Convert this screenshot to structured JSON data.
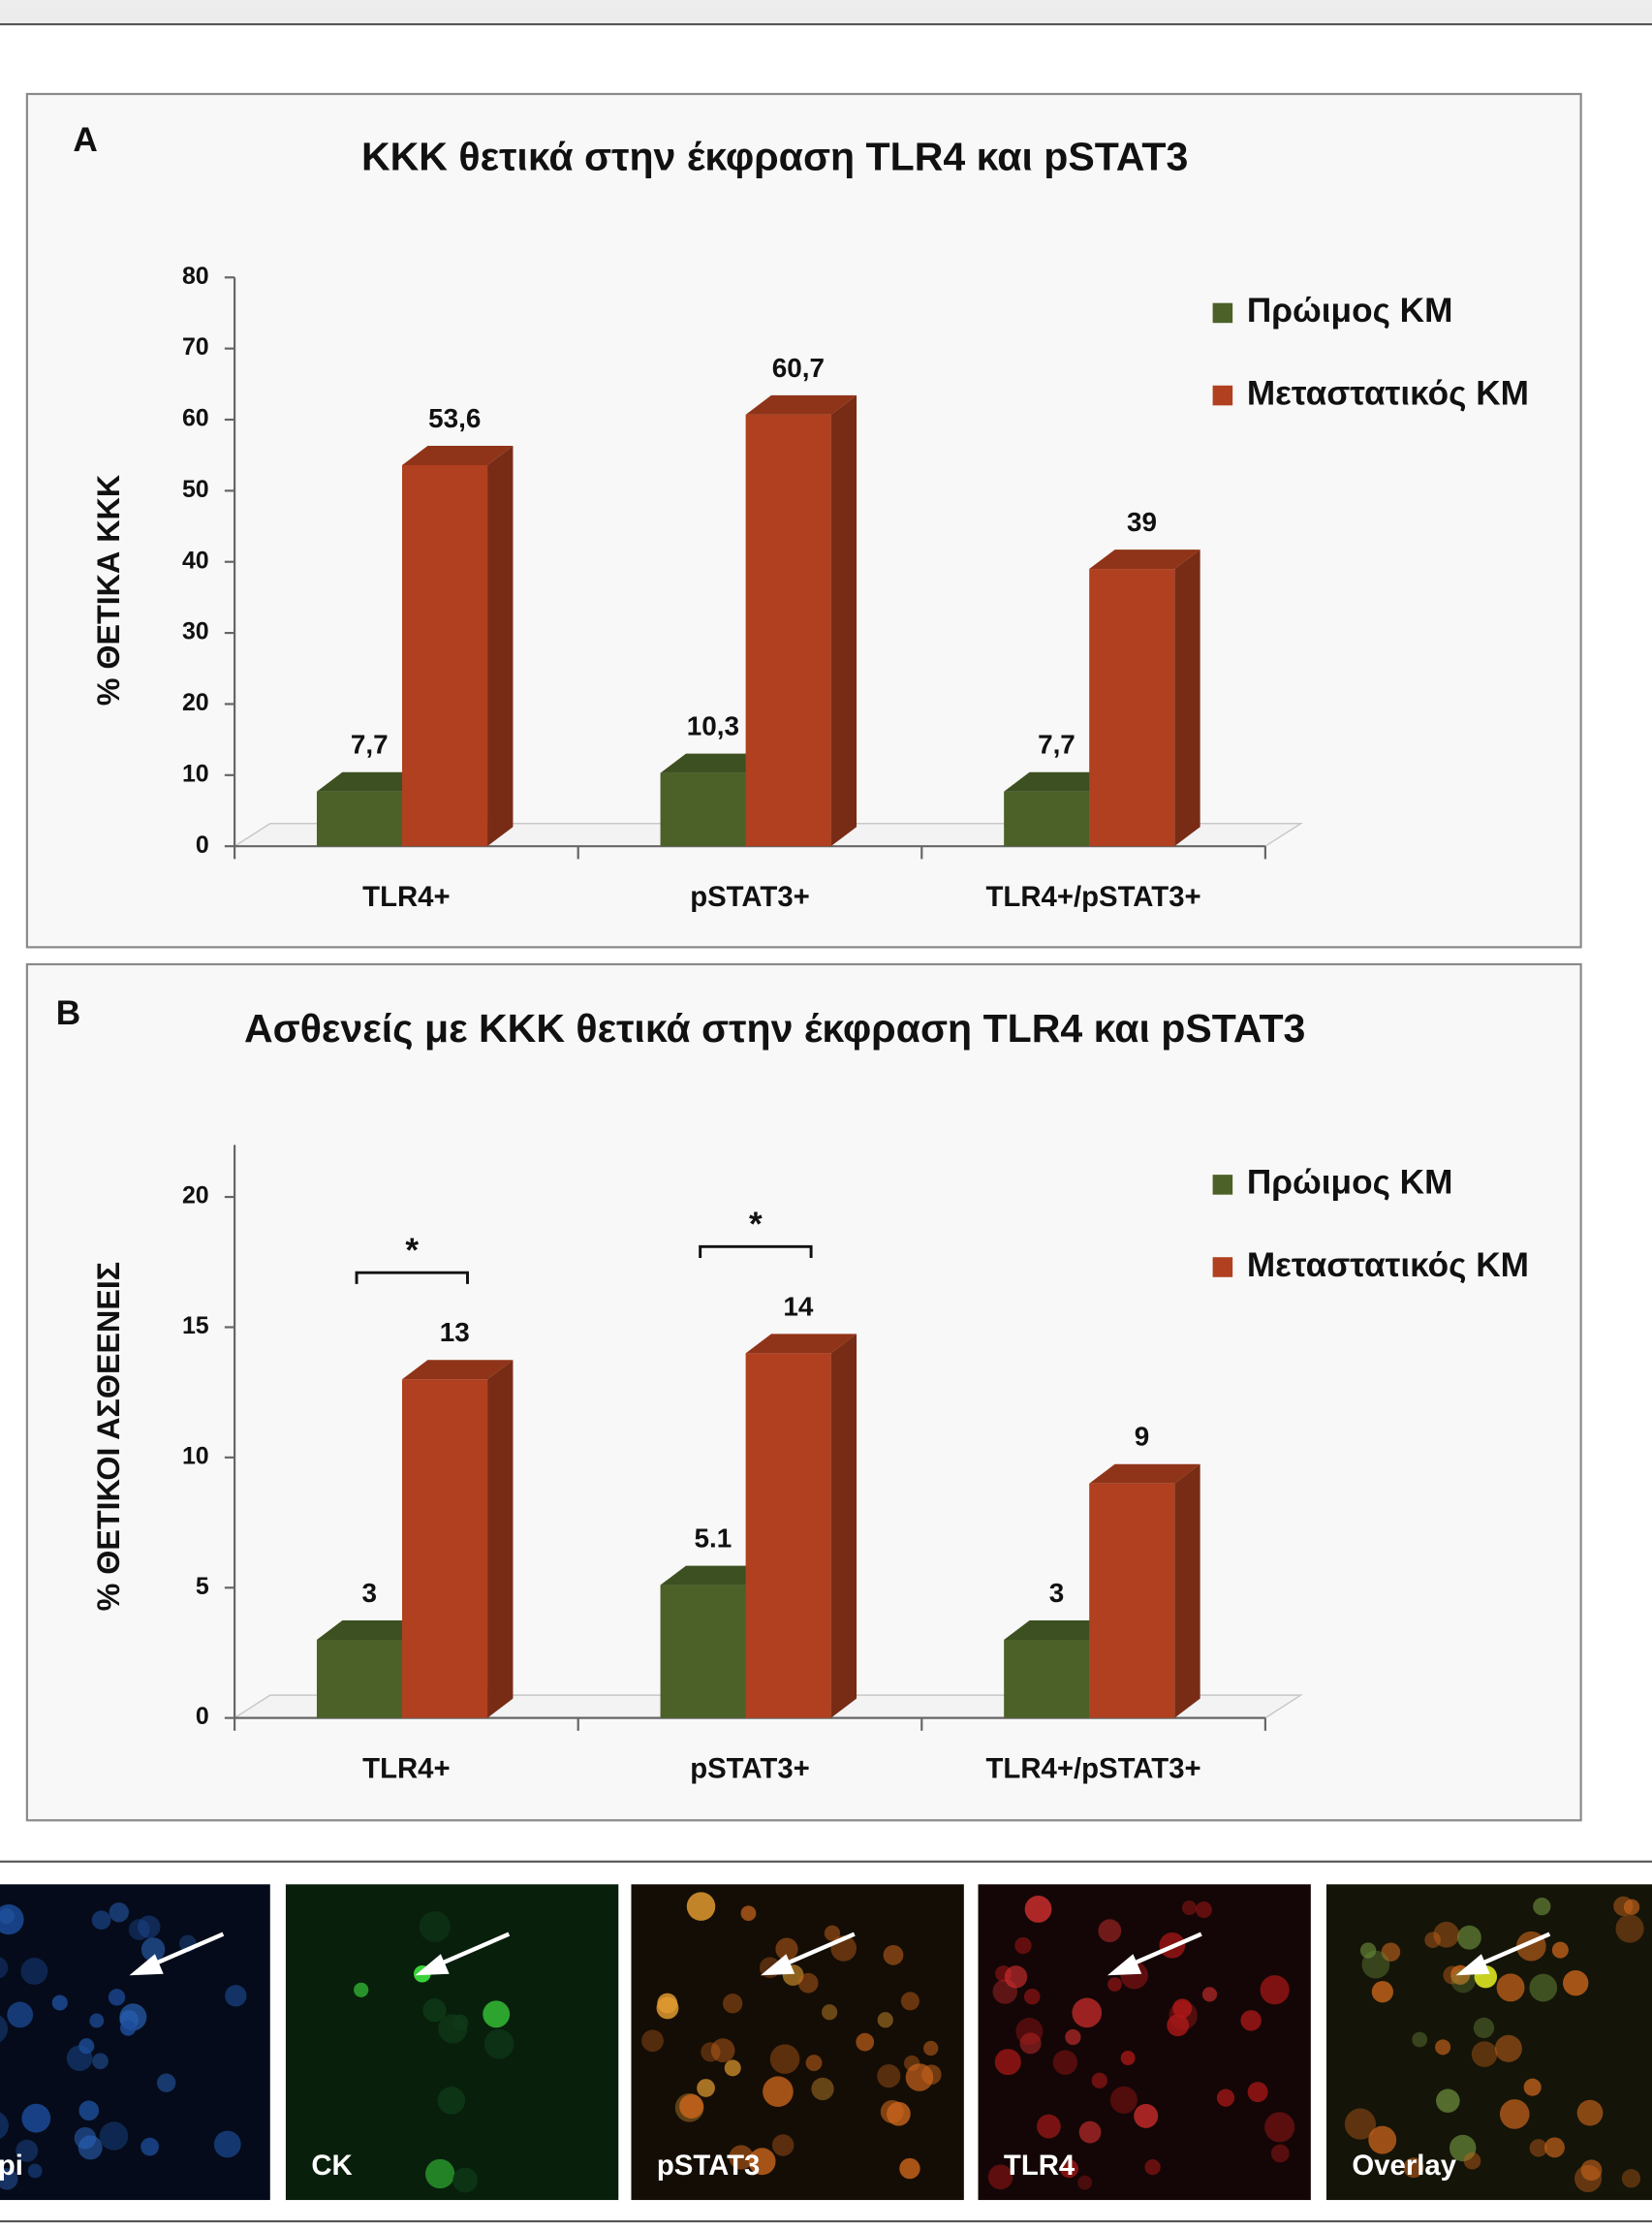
{
  "chart_data": [
    {
      "type": "bar3d",
      "label": "A",
      "title": "ΚΚΚ θετικά στην έκφραση TLR4 και pSTAT3",
      "y_label": "% ΘΕΤΙΚΑ ΚΚΚ",
      "categories": [
        "TLR4+",
        "pSTAT3+",
        "TLR4+/pSTAT3+"
      ],
      "series": [
        {
          "name": "Πρώιμος ΚΜ",
          "color": "#4b6128",
          "values": [
            7.7,
            10.3,
            7.7
          ],
          "value_labels": [
            "7,7",
            "10,3",
            "7,7"
          ]
        },
        {
          "name": "Μεταστατικός ΚΜ",
          "color": "#b0401f",
          "values": [
            53.6,
            60.7,
            39
          ],
          "value_labels": [
            "53,6",
            "60,7",
            "39"
          ]
        }
      ],
      "ylim": [
        0,
        80
      ],
      "yticks": [
        0,
        10,
        20,
        30,
        40,
        50,
        60,
        70,
        80
      ],
      "legend": "upper right"
    },
    {
      "type": "bar3d",
      "label": "B",
      "title": "Ασθενείς με ΚΚΚ θετικά στην έκφραση TLR4 και pSTAT3",
      "y_label": "% ΘΕΤΙΚΟΙ ΑΣΘΕΕΝΕΙΣ",
      "categories": [
        "TLR4+",
        "pSTAT3+",
        "TLR4+/pSTAT3+"
      ],
      "series": [
        {
          "name": "Πρώιμος ΚΜ",
          "color": "#4b6128",
          "values": [
            3,
            5.1,
            3
          ]
        },
        {
          "name": "Μεταστατικός ΚΜ",
          "color": "#b0401f",
          "values": [
            13,
            14,
            9
          ]
        }
      ],
      "annotations": [
        "*",
        "*"
      ],
      "ylim": [
        0,
        22
      ],
      "yticks": [
        0,
        5,
        10,
        15,
        20
      ],
      "legend": "upper right"
    }
  ],
  "images": [
    {
      "label": "Dapi"
    },
    {
      "label": "CK"
    },
    {
      "label": "pSTAT3"
    },
    {
      "label": "TLR4"
    },
    {
      "label": "Overlay"
    }
  ]
}
